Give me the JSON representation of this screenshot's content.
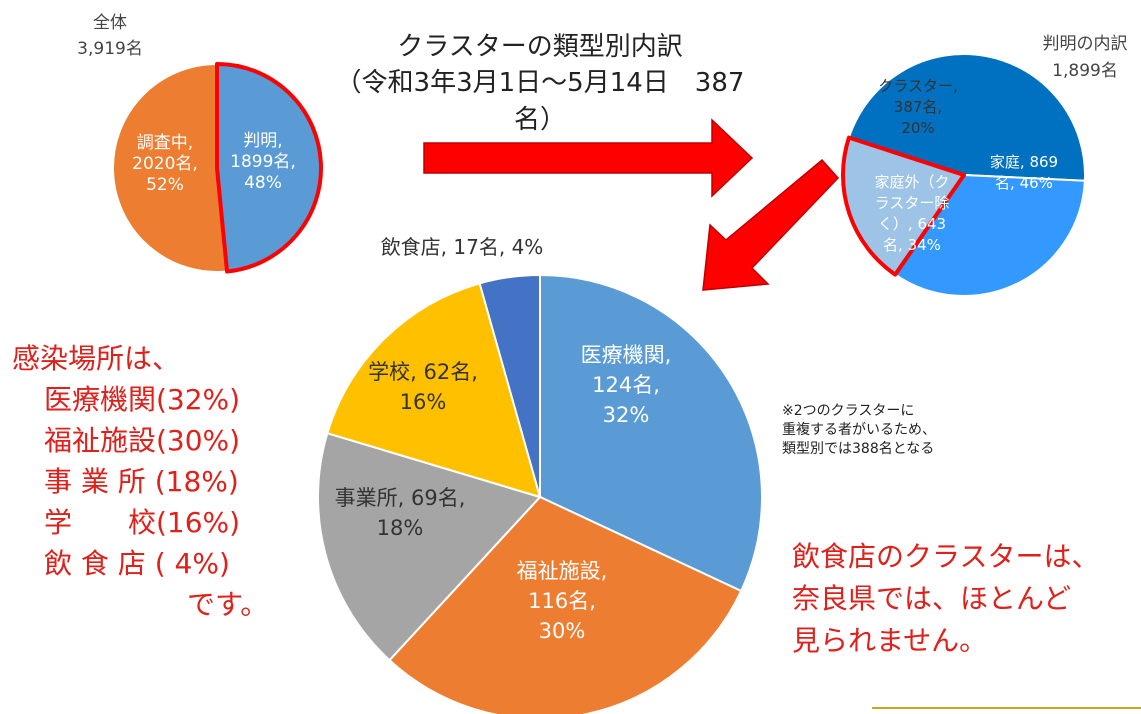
{
  "title": {
    "line1": "クラスターの類型別内訳",
    "line2": "（令和3年3月1日～5月14日　387名）"
  },
  "chart_data": [
    {
      "type": "pie",
      "header": "全体",
      "total": "3,919名",
      "slices": [
        {
          "name": "判明",
          "value": 1899,
          "percent": 48,
          "label": [
            "判明,",
            "1899名,",
            "48%"
          ],
          "color": "#5b9bd5"
        },
        {
          "name": "調査中",
          "value": 2020,
          "percent": 52,
          "label": [
            "調査中,",
            "2020名,",
            "52%"
          ],
          "color": "#ed7d31"
        }
      ]
    },
    {
      "type": "pie",
      "header": "判明の内訳",
      "total": "1,899名",
      "slices": [
        {
          "name": "家庭",
          "value": 869,
          "percent": 46,
          "label": [
            "家庭, 869",
            "名, 46%"
          ],
          "color": "#0070c0"
        },
        {
          "name": "家庭外（クラスター除く）",
          "value": 643,
          "percent": 34,
          "label": [
            "家庭外（ク",
            "ラスター除",
            "く）, 643",
            "名, 34%"
          ],
          "color": "#3399ff"
        },
        {
          "name": "クラスター",
          "value": 387,
          "percent": 20,
          "label": [
            "クラスター,",
            "387名,",
            "20%"
          ],
          "color": "#9dc3e6"
        }
      ]
    },
    {
      "type": "pie",
      "slices": [
        {
          "name": "医療機関",
          "value": 124,
          "percent": 32,
          "label": [
            "医療機関,",
            "124名,",
            "32%"
          ],
          "color": "#5b9bd5"
        },
        {
          "name": "福祉施設",
          "value": 116,
          "percent": 30,
          "label": [
            "福祉施設,",
            "116名,",
            "30%"
          ],
          "color": "#ed7d31"
        },
        {
          "name": "事業所",
          "value": 69,
          "percent": 18,
          "label": [
            "事業所, 69名,",
            "18%"
          ],
          "color": "#a5a5a5"
        },
        {
          "name": "学校",
          "value": 62,
          "percent": 16,
          "label": [
            "学校, 62名,",
            "16%"
          ],
          "color": "#ffc000"
        },
        {
          "name": "飲食店",
          "value": 17,
          "percent": 4,
          "label": [
            "飲食店, 17名, 4%"
          ],
          "color": "#4472c4"
        }
      ]
    }
  ],
  "left_note": [
    "感染場所は、",
    "医療機関(32%)",
    "福祉施設(30%)",
    "事 業 所 (18%)",
    "学　　校(16%)",
    "飲 食 店 (  4%)",
    "です。"
  ],
  "footnote": [
    "※2つのクラスターに",
    "重複する者がいるため、",
    "類型別では388名となる"
  ],
  "right_note": [
    "飲食店のクラスターは、",
    "奈良県では、ほとんど",
    "見られません。"
  ],
  "colors": {
    "highlight_red": "#ff0000",
    "note_red": "#e0201a",
    "arrow_red": "#ff0000"
  }
}
